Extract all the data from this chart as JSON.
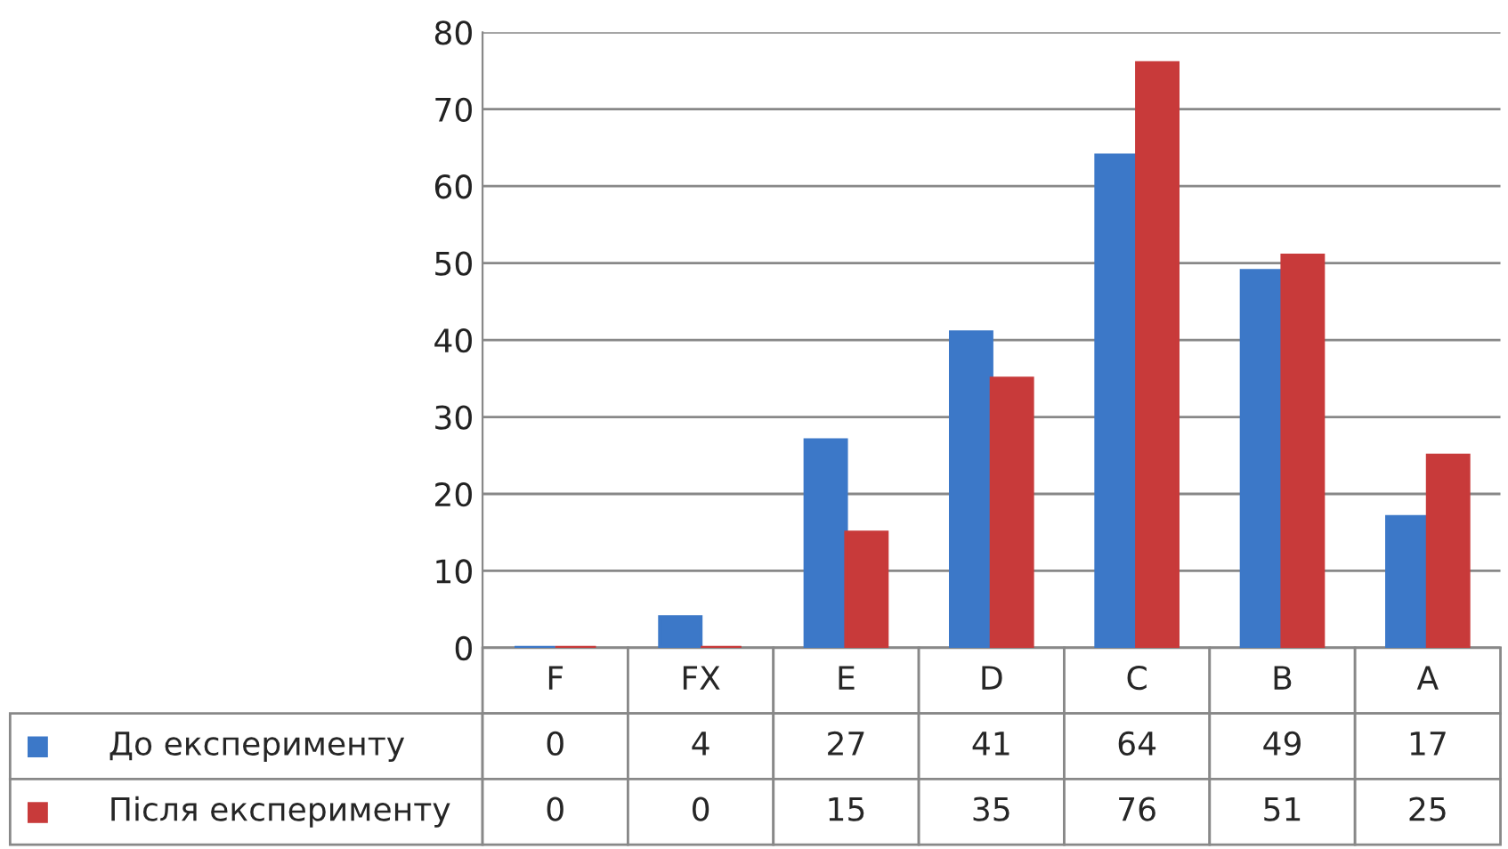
{
  "chart_data": {
    "type": "bar",
    "categories": [
      "F",
      "FX",
      "E",
      "D",
      "C",
      "B",
      "A"
    ],
    "series": [
      {
        "name": "До експерименту",
        "color": "#3c78c8",
        "values": [
          0,
          4,
          27,
          41,
          64,
          49,
          17
        ]
      },
      {
        "name": "Після експерименту",
        "color": "#c83a3a",
        "values": [
          0,
          0,
          15,
          35,
          76,
          51,
          25
        ]
      }
    ],
    "ylim": [
      0,
      80
    ],
    "yticks": [
      0,
      10,
      20,
      30,
      40,
      50,
      60,
      70,
      80
    ],
    "grid": "y",
    "data_labels": true,
    "legend": "bottom"
  }
}
